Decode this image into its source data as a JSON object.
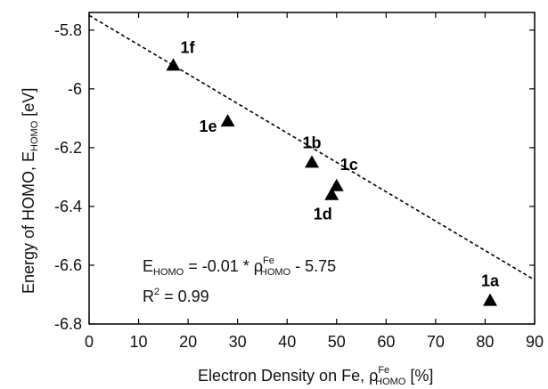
{
  "chart_data": {
    "type": "scatter",
    "xlabel": {
      "main": "Electron Density on Fe, ρ",
      "sup": "Fe",
      "sub": "HOMO",
      "unit": " [%]"
    },
    "ylabel": {
      "main": "Energy of HOMO, E",
      "sub": "HOMO",
      "unit": " [eV]"
    },
    "xlim": [
      0,
      90
    ],
    "ylim": [
      -6.8,
      -5.74
    ],
    "x_ticks": [
      "0",
      "10",
      "20",
      "30",
      "40",
      "50",
      "60",
      "70",
      "80",
      "90"
    ],
    "y_ticks": [
      "-5.8",
      "-6",
      "-6.2",
      "-6.4",
      "-6.6",
      "-6.8"
    ],
    "marker": "triangle",
    "points": [
      {
        "label": "1f",
        "x": 17,
        "y": -5.92
      },
      {
        "label": "1e",
        "x": 28,
        "y": -6.11
      },
      {
        "label": "1b",
        "x": 45,
        "y": -6.25
      },
      {
        "label": "1c",
        "x": 50,
        "y": -6.33
      },
      {
        "label": "1d",
        "x": 49,
        "y": -6.36
      },
      {
        "label": "1a",
        "x": 81,
        "y": -6.72
      }
    ],
    "fit": {
      "slope": -0.01,
      "intercept": -5.75,
      "style": "dashed"
    },
    "equation": {
      "lhs_main": "E",
      "lhs_sub": "HOMO",
      "mid": " = -0.01 * ρ",
      "rho_sup": "Fe",
      "rho_sub": "HOMO",
      "tail": " - 5.75"
    },
    "r2": {
      "main": "R",
      "sup": "2",
      "tail": " = 0.99"
    }
  }
}
